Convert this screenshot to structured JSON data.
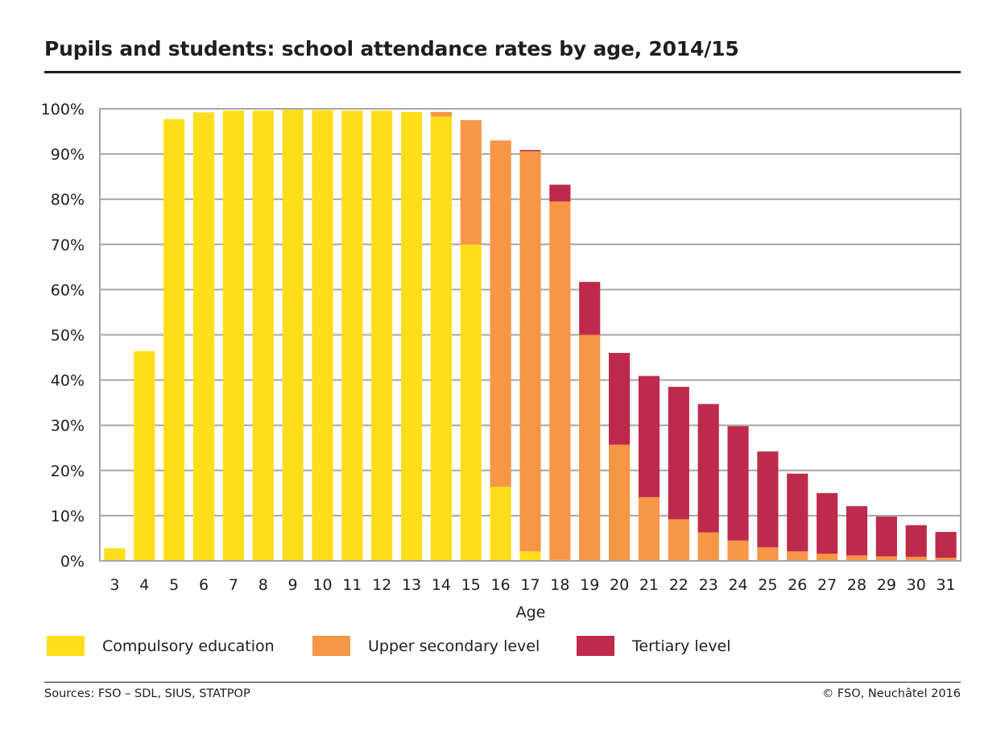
{
  "chart_data": {
    "type": "bar",
    "stacked": true,
    "title": "Pupils and students: school attendance rates by age, 2014/15",
    "xlabel": "Age",
    "ylabel": "",
    "ylim": [
      0,
      100
    ],
    "yticks": [
      0,
      10,
      20,
      30,
      40,
      50,
      60,
      70,
      80,
      90,
      100
    ],
    "ytick_labels": [
      "0%",
      "10%",
      "20%",
      "30%",
      "40%",
      "50%",
      "60%",
      "70%",
      "80%",
      "90%",
      "100%"
    ],
    "grid": true,
    "legend_position": "bottom",
    "categories": [
      "3",
      "4",
      "5",
      "6",
      "7",
      "8",
      "9",
      "10",
      "11",
      "12",
      "13",
      "14",
      "15",
      "16",
      "17",
      "18",
      "19",
      "20",
      "21",
      "22",
      "23",
      "24",
      "25",
      "26",
      "27",
      "28",
      "29",
      "30",
      "31"
    ],
    "series": [
      {
        "name": "Compulsory education",
        "color": "#fede1b",
        "values": [
          2.8,
          46.4,
          97.7,
          99.2,
          99.6,
          99.6,
          99.8,
          99.7,
          99.6,
          99.6,
          99.3,
          98.3,
          70.0,
          16.4,
          2.1,
          0.2,
          0.1,
          0,
          0,
          0,
          0,
          0,
          0,
          0,
          0,
          0,
          0,
          0,
          0
        ]
      },
      {
        "name": "Upper secondary level",
        "color": "#f79646",
        "values": [
          0,
          0,
          0,
          0,
          0,
          0,
          0,
          0,
          0,
          0,
          0,
          1.0,
          27.5,
          76.6,
          88.5,
          79.3,
          49.9,
          25.7,
          14.1,
          9.2,
          6.3,
          4.5,
          3.0,
          2.1,
          1.6,
          1.2,
          1.0,
          0.9,
          0.7
        ]
      },
      {
        "name": "Tertiary level",
        "color": "#be2a4b",
        "values": [
          0,
          0,
          0,
          0,
          0,
          0,
          0,
          0,
          0,
          0,
          0,
          0,
          0,
          0,
          0.3,
          3.7,
          11.7,
          20.3,
          26.8,
          29.3,
          28.4,
          25.3,
          21.2,
          17.2,
          13.4,
          10.9,
          8.8,
          7.0,
          5.7
        ]
      }
    ]
  },
  "footer": {
    "source": "Sources: FSO – SDL, SIUS, STATPOP",
    "copyright": "© FSO, Neuchâtel 2016"
  },
  "colors": {
    "grid": "#a6a6a6",
    "text": "#1e1e1e"
  }
}
